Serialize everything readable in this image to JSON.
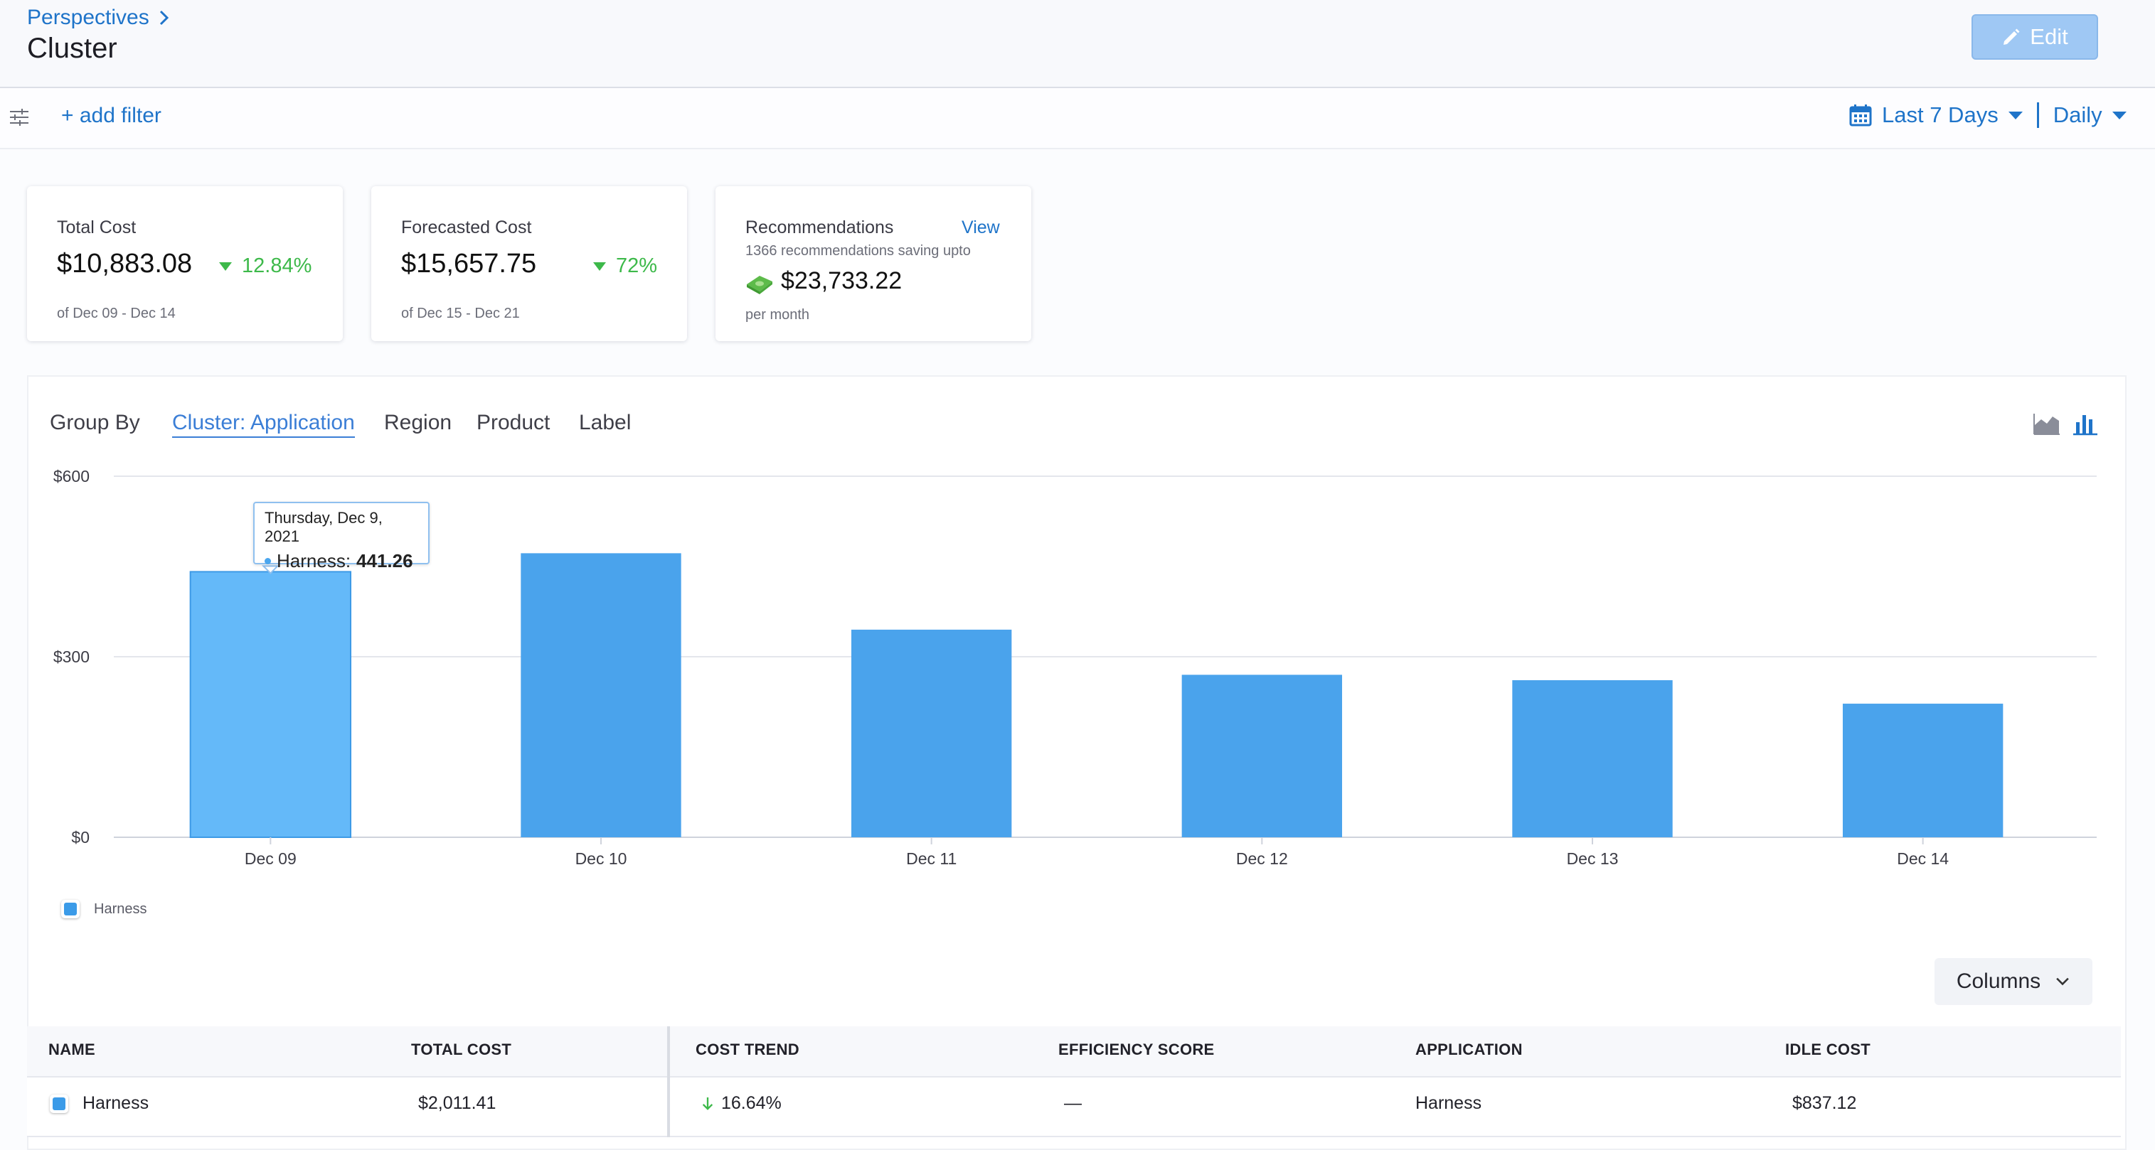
{
  "header": {
    "breadcrumb": "Perspectives",
    "title": "Cluster",
    "edit_label": "Edit"
  },
  "filterbar": {
    "add_filter": "+ add filter",
    "date_range": "Last 7 Days",
    "granularity": "Daily"
  },
  "cards": {
    "total": {
      "label": "Total Cost",
      "value": "$10,883.08",
      "trend": "12.84%",
      "sub": "of Dec 09 - Dec 14"
    },
    "forecast": {
      "label": "Forecasted Cost",
      "value": "$15,657.75",
      "trend": "72%",
      "sub": "of Dec 15 - Dec 21"
    },
    "recommendations": {
      "label": "Recommendations",
      "link": "View",
      "desc": "1366 recommendations saving upto",
      "value": "$23,733.22",
      "sub": "per month"
    }
  },
  "groupby": {
    "label": "Group By",
    "tabs": [
      "Cluster: Application",
      "Region",
      "Product",
      "Label"
    ],
    "active": 0
  },
  "tooltip": {
    "date": "Thursday, Dec 9, 2021",
    "series": "Harness:",
    "value": "441.26"
  },
  "chart_data": {
    "type": "bar",
    "categories": [
      "Dec 09",
      "Dec 10",
      "Dec 11",
      "Dec 12",
      "Dec 13",
      "Dec 14"
    ],
    "series": [
      {
        "name": "Harness",
        "values": [
          441.26,
          472,
          345,
          270,
          261,
          222
        ],
        "color": "#4aa3ec"
      }
    ],
    "y_ticks": [
      "$0",
      "$300",
      "$600"
    ],
    "ylim": [
      0,
      600
    ],
    "grid": true,
    "legend": "bottom-left",
    "highlight_index": 0,
    "highlight_color": "#64b9f9"
  },
  "columns_label": "Columns",
  "table": {
    "headers": [
      "NAME",
      "TOTAL COST",
      "COST TREND",
      "EFFICIENCY SCORE",
      "APPLICATION",
      "IDLE COST"
    ],
    "rows": [
      {
        "name": "Harness",
        "total_cost": "$2,011.41",
        "cost_trend": "16.64%",
        "efficiency": "—",
        "application": "Harness",
        "idle_cost": "$837.12"
      }
    ]
  }
}
